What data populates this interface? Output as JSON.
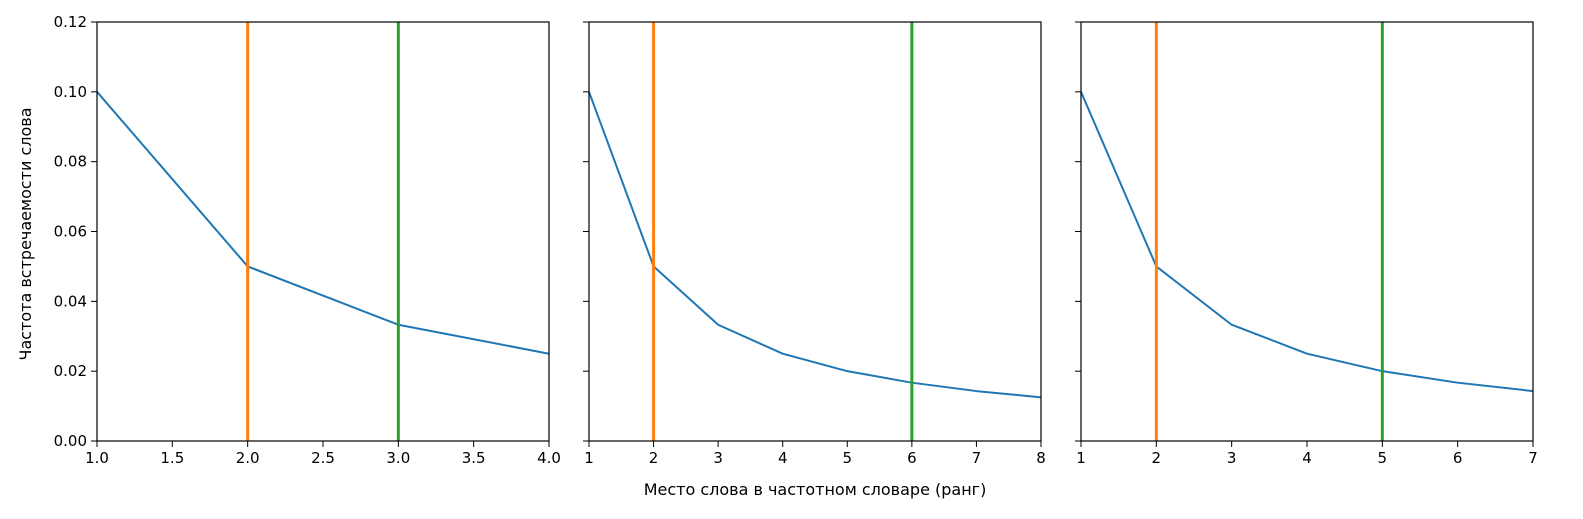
{
  "figure": {
    "ylabel": "Частота встречаемости слова",
    "xlabel": "Место слова в частотном словаре (ранг)"
  },
  "colors": {
    "series": "#1f77b4",
    "vline_orange": "#ff7f0e",
    "vline_green": "#2ca02c",
    "axis": "#000000",
    "background": "#ffffff"
  },
  "chart_data": [
    {
      "type": "line",
      "xlim": [
        1.0,
        4.0
      ],
      "ylim": [
        0.0,
        0.12
      ],
      "xticks": [
        1.0,
        1.5,
        2.0,
        2.5,
        3.0,
        3.5,
        4.0
      ],
      "xtick_labels": [
        "1.0",
        "1.5",
        "2.0",
        "2.5",
        "3.0",
        "3.5",
        "4.0"
      ],
      "yticks": [
        0.0,
        0.02,
        0.04,
        0.06,
        0.08,
        0.1,
        0.12
      ],
      "ytick_labels": [
        "0.00",
        "0.02",
        "0.04",
        "0.06",
        "0.08",
        "0.10",
        "0.12"
      ],
      "x": [
        1,
        2,
        3,
        4
      ],
      "y": [
        0.1,
        0.05,
        0.0333,
        0.025
      ],
      "vlines": [
        {
          "x": 2,
          "color": "orange"
        },
        {
          "x": 3,
          "color": "green"
        }
      ]
    },
    {
      "type": "line",
      "xlim": [
        1,
        8
      ],
      "ylim": [
        0.0,
        0.12
      ],
      "xticks": [
        1,
        2,
        3,
        4,
        5,
        6,
        7,
        8
      ],
      "xtick_labels": [
        "1",
        "2",
        "3",
        "4",
        "5",
        "6",
        "7",
        "8"
      ],
      "yticks": [
        0.0,
        0.02,
        0.04,
        0.06,
        0.08,
        0.1,
        0.12
      ],
      "ytick_labels": [],
      "x": [
        1,
        2,
        3,
        4,
        5,
        6,
        7,
        8
      ],
      "y": [
        0.1,
        0.05,
        0.0333,
        0.025,
        0.02,
        0.0167,
        0.0143,
        0.0125
      ],
      "vlines": [
        {
          "x": 2,
          "color": "orange"
        },
        {
          "x": 6,
          "color": "green"
        }
      ]
    },
    {
      "type": "line",
      "xlim": [
        1,
        7
      ],
      "ylim": [
        0.0,
        0.12
      ],
      "xticks": [
        1,
        2,
        3,
        4,
        5,
        6,
        7
      ],
      "xtick_labels": [
        "1",
        "2",
        "3",
        "4",
        "5",
        "6",
        "7"
      ],
      "yticks": [
        0.0,
        0.02,
        0.04,
        0.06,
        0.08,
        0.1,
        0.12
      ],
      "ytick_labels": [],
      "x": [
        1,
        2,
        3,
        4,
        5,
        6,
        7
      ],
      "y": [
        0.1,
        0.05,
        0.0333,
        0.025,
        0.02,
        0.0167,
        0.0143
      ],
      "vlines": [
        {
          "x": 2,
          "color": "orange"
        },
        {
          "x": 5,
          "color": "green"
        }
      ]
    }
  ]
}
